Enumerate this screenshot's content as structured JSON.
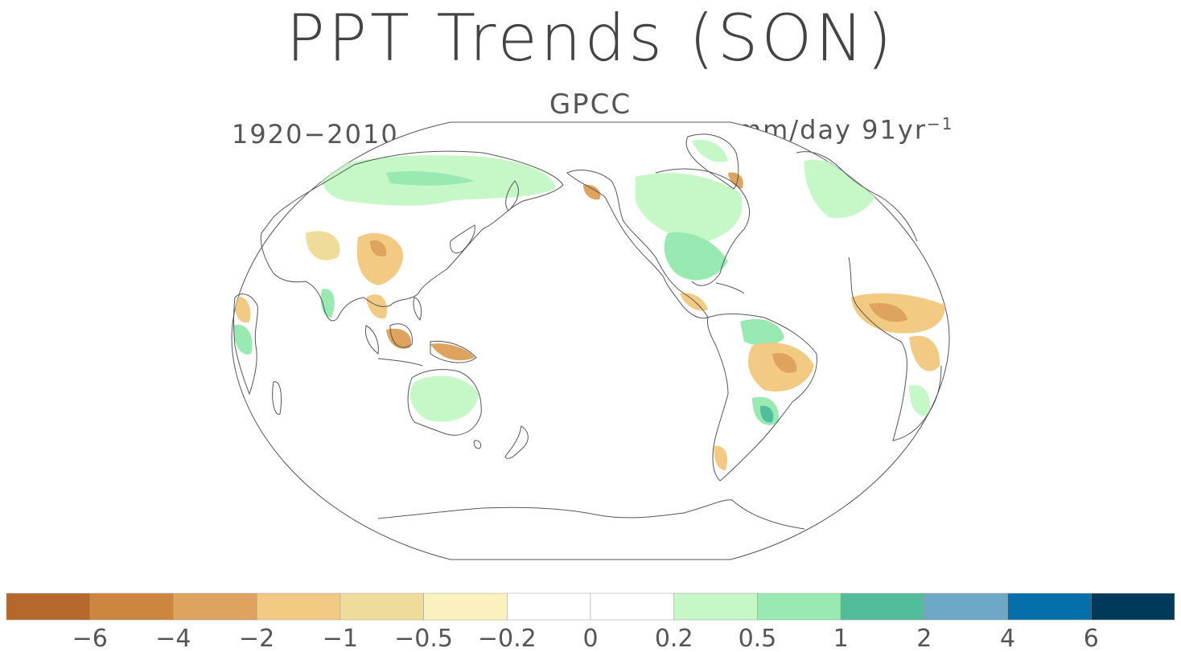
{
  "title": "PPT Trends (SON)",
  "subtitle": "GPCC",
  "period": "1920−2010",
  "units": {
    "base": "mm/day 91yr",
    "exponent": "−1"
  },
  "colorbar": {
    "colors": [
      "#b4682c",
      "#cd863f",
      "#dea45f",
      "#f2ca84",
      "#f0dc9a",
      "#fbf1bc",
      "#ffffff",
      "#ffffff",
      "#c6f7c6",
      "#98eab2",
      "#52bd9a",
      "#6fa8c6",
      "#046fab",
      "#003a5a"
    ],
    "labels": [
      "−6",
      "−4",
      "−2",
      "−1",
      "−0.5",
      "−0.2",
      "0",
      "0.2",
      "0.5",
      "1",
      "2",
      "4",
      "6"
    ]
  },
  "chart_data": {
    "type": "heatmap",
    "variable": "PPT Trends (SON)",
    "dataset": "GPCC",
    "period": "1920−2010",
    "units": "mm/day 91yr⁻¹",
    "levels": [
      -6,
      -4,
      -2,
      -1,
      -0.5,
      -0.2,
      0,
      0.2,
      0.5,
      1,
      2,
      4,
      6
    ]
  }
}
